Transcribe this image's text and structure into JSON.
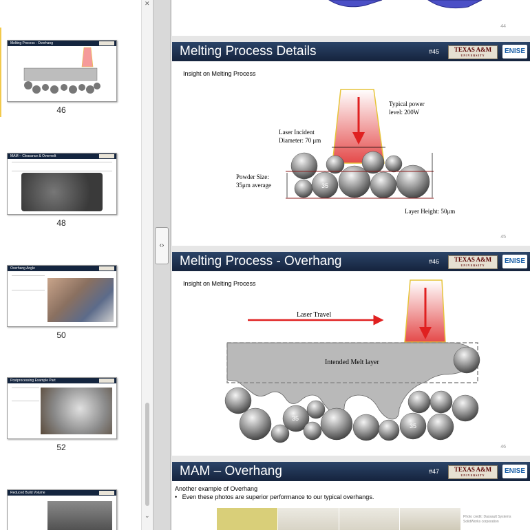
{
  "thumbnails": [
    {
      "number": "46",
      "title": "Melting Process - Overhang"
    },
    {
      "number": "48",
      "title": "MAM – Clearance & Overmelt"
    },
    {
      "number": "50",
      "title": "Overhang Angle"
    },
    {
      "number": "52",
      "title": "Postprocessing Example Part"
    },
    {
      "number": "",
      "title": "Reduced Build Volume"
    }
  ],
  "slides": {
    "s44": {
      "page": "44"
    },
    "s45": {
      "title": "Melting Process Details",
      "number": "#45",
      "subtitle": "Insight on Melting Process",
      "power": "Typical power\nlevel: 200W",
      "laser_incident": "Laser Incident\nDiameter: 70 μm",
      "powder_size": "Powder Size:\n35μm average",
      "particle_label": "35",
      "layer_height": "Layer Height: 50μm",
      "page": "45"
    },
    "s46": {
      "title": "Melting Process - Overhang",
      "number": "#46",
      "subtitle": "Insight on Melting Process",
      "laser_travel": "Laser Travel",
      "melt_layer": "Intended Melt layer",
      "particle_label_1": "35",
      "particle_label_2": "35",
      "page": "46"
    },
    "s47": {
      "title": "MAM – Overhang",
      "number": "#47",
      "line1": "Another example of Overhang",
      "line2": "Even these photos are superior performance to our typical overhangs.",
      "credit": "Photo credit: Dassault Systems SolidWorks corporation"
    }
  },
  "logos": {
    "tamu": "TEXAS A&M",
    "tamu_sub": "UNIVERSITY",
    "enise": "ENISE"
  },
  "colors": {
    "title_bar": "#15233d",
    "laser": "#e23b3b",
    "laser_outline": "#e6c43a",
    "arrow": "#e02020"
  }
}
